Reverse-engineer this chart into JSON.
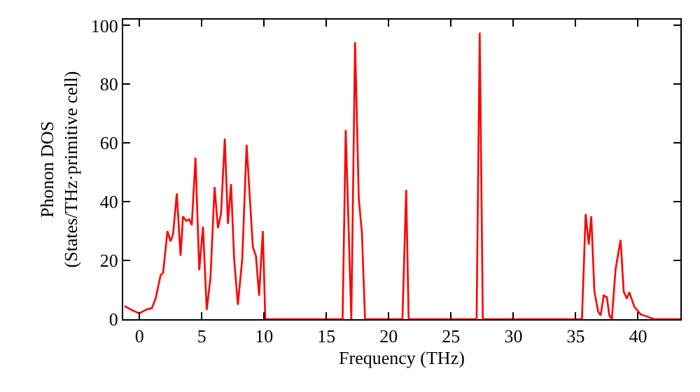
{
  "chart_data": {
    "type": "line",
    "xlabel": "Frequency (THz)",
    "ylabel": "Phonon DOS\n(States/THz·primitive cell)",
    "xlim": [
      -1.3,
      43.4
    ],
    "ylim": [
      0,
      102
    ],
    "xticks": [
      0,
      5,
      10,
      15,
      20,
      25,
      30,
      35,
      40
    ],
    "yticks": [
      0,
      20,
      40,
      60,
      80,
      100
    ],
    "marker": "none",
    "line_style": "solid",
    "series": [
      {
        "color": "#ff0000",
        "x": [
          -1.2,
          -0.56,
          0,
          0.56,
          1.0,
          1.3,
          1.7,
          1.9,
          2.25,
          2.5,
          2.7,
          3.0,
          3.3,
          3.5,
          3.75,
          4.0,
          4.2,
          4.5,
          4.8,
          5.1,
          5.4,
          5.7,
          6.03,
          6.3,
          6.55,
          6.85,
          7.1,
          7.35,
          7.6,
          7.9,
          8.25,
          8.6,
          9.1,
          9.35,
          9.6,
          9.9,
          10.1,
          16.3,
          16.55,
          17.0,
          17.3,
          17.6,
          17.85,
          18.1,
          21.1,
          21.4,
          21.6,
          27.05,
          27.3,
          27.55,
          35.5,
          35.8,
          36.05,
          36.25,
          36.5,
          36.8,
          37.0,
          37.25,
          37.5,
          37.7,
          37.9,
          38.2,
          38.6,
          38.85,
          39.1,
          39.3,
          39.7,
          40.2,
          40.8,
          41.3,
          43.4
        ],
        "values": [
          4.5,
          3,
          2,
          3.3,
          3.8,
          7,
          15,
          15.8,
          30,
          26.5,
          29,
          42.8,
          21.6,
          35,
          33.5,
          34,
          32,
          55,
          16.7,
          31.5,
          3.2,
          14.1,
          45,
          31,
          36,
          61.5,
          32.5,
          46,
          20.5,
          4.9,
          20.5,
          59.4,
          24.6,
          21.5,
          8,
          30,
          0,
          0,
          64.4,
          0,
          94.3,
          41,
          29.5,
          0,
          0,
          44,
          0,
          0,
          97.5,
          0,
          0,
          35.8,
          25.4,
          35,
          9.5,
          2.6,
          1.3,
          8.1,
          7.5,
          1.3,
          0,
          17,
          27,
          9.5,
          7,
          9.2,
          4.3,
          1.7,
          0.8,
          0,
          0
        ]
      }
    ]
  }
}
